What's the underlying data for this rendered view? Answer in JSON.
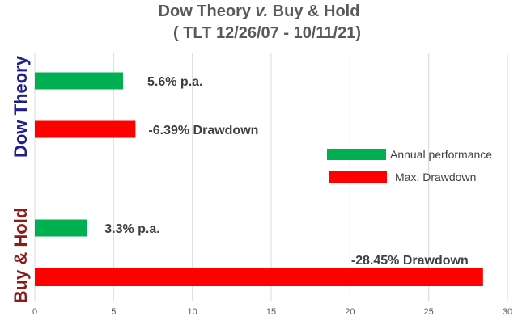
{
  "chart_data": {
    "type": "bar",
    "orientation": "horizontal",
    "title_line1_pre": "Dow Theory ",
    "title_line1_italic": "v.",
    "title_line1_post": " Buy & Hold",
    "title_line2": "(  TLT 12/26/07 - 10/11/21)",
    "groups": [
      {
        "label": "Dow Theory",
        "color": "#1f1f8c"
      },
      {
        "label": "Buy & Hold",
        "color": "#8b1a1a"
      }
    ],
    "bars": [
      {
        "group": "Dow Theory",
        "series": "Annual performance",
        "value": 5.6,
        "label": "5.6% p.a."
      },
      {
        "group": "Dow Theory",
        "series": "Max. Drawdown",
        "value": 6.39,
        "label": "-6.39% Drawdown"
      },
      {
        "group": "Buy & Hold",
        "series": "Annual performance",
        "value": 3.3,
        "label": "3.3% p.a."
      },
      {
        "group": "Buy & Hold",
        "series": "Max. Drawdown",
        "value": 28.45,
        "label": "-28.45% Drawdown"
      }
    ],
    "series": [
      {
        "name": "Annual performance",
        "color": "#00b050"
      },
      {
        "name": "Max. Drawdown",
        "color": "#ff0000"
      }
    ],
    "xlim": [
      0,
      30
    ],
    "xticks": [
      "0",
      "5",
      "10",
      "15",
      "20",
      "25",
      "30"
    ],
    "grid": true,
    "legend_position": "right-middle"
  }
}
